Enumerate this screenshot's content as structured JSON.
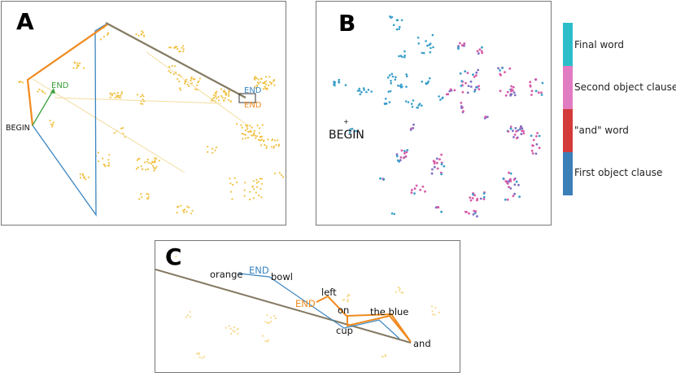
{
  "panels": {
    "a": {
      "letter": "A",
      "labels": {
        "begin": "BEGIN",
        "end_green": "END",
        "end_blue": "END",
        "end_orange": "END"
      }
    },
    "b": {
      "letter": "B",
      "labels": {
        "begin": "BEGIN"
      }
    },
    "c": {
      "letter": "C",
      "words": {
        "orange": "orange",
        "end_blue": "END",
        "bowl": "bowl",
        "left": "left",
        "end_orange": "END",
        "on": "on",
        "the_blue": "the blue",
        "cup": "cup",
        "and": "and"
      }
    }
  },
  "legend": {
    "items": [
      {
        "label": "Final word",
        "color": "#2bbec9"
      },
      {
        "label": "Second object clause",
        "color": "#e27cc2"
      },
      {
        "label": "\"and\" word",
        "color": "#d33a3a"
      },
      {
        "label": "First object clause",
        "color": "#3a7fb8"
      }
    ]
  },
  "colors": {
    "points": "#f0c040",
    "orange_path": "#f08a1e",
    "blue_path": "#3a85c0",
    "green_path": "#3aa03a",
    "gray_path": "#847a62",
    "first_clause": "#3a9fc9",
    "second_clause": "#d65aa8"
  }
}
